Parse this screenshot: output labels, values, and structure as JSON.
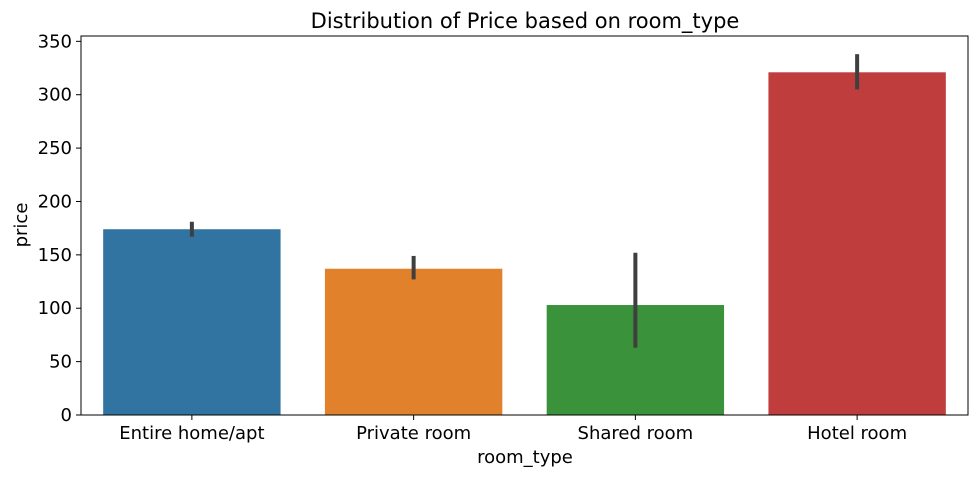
{
  "chart_data": {
    "type": "bar",
    "title": "Distribution of Price based on room_type",
    "xlabel": "room_type",
    "ylabel": "price",
    "categories": [
      "Entire home/apt",
      "Private room",
      "Shared room",
      "Hotel room"
    ],
    "values": [
      174,
      137,
      103,
      321
    ],
    "error_low": [
      167,
      127,
      63,
      305
    ],
    "error_high": [
      181,
      149,
      152,
      338
    ],
    "colors": [
      "#3274a1",
      "#e1812c",
      "#3a923a",
      "#c03d3e"
    ],
    "error_color": "#3f3f3f",
    "ylim": [
      0,
      355
    ],
    "yticks": [
      0,
      50,
      100,
      150,
      200,
      250,
      300,
      350
    ],
    "grid": false,
    "legend": "none"
  }
}
